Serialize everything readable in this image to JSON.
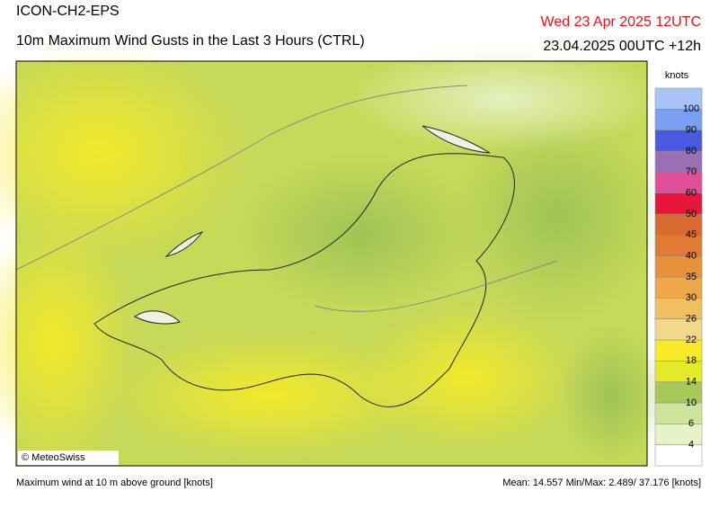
{
  "header": {
    "model": "ICON-CH2-EPS",
    "title": "10m Maximum Wind Gusts in the Last 3 Hours (CTRL)",
    "valid_time": "Wed 23 Apr 2025 12UTC",
    "run": "23.04.2025 00UTC +12h"
  },
  "map": {
    "copyright": "© MeteoSwiss"
  },
  "colorbar": {
    "unit": "knots",
    "levels": [
      4,
      6,
      10,
      14,
      18,
      22,
      26,
      30,
      35,
      40,
      45,
      50,
      60,
      70,
      80,
      90,
      100
    ],
    "colors": [
      "#ffffff",
      "#e6f2c8",
      "#cde49a",
      "#a9c85a",
      "#e2ea2a",
      "#f7ea2a",
      "#f2d88a",
      "#f0c060",
      "#eea848",
      "#e8903a",
      "#e07a34",
      "#d86a30",
      "#e8163a",
      "#e0509a",
      "#9a70b4",
      "#4a5ae0",
      "#7a9ef0",
      "#a8c4f6"
    ]
  },
  "footer": {
    "left": "Maximum wind at 10 m above ground [knots]",
    "right": "Mean:  14.557 Min/Max:   2.489/ 37.176 [knots]"
  }
}
